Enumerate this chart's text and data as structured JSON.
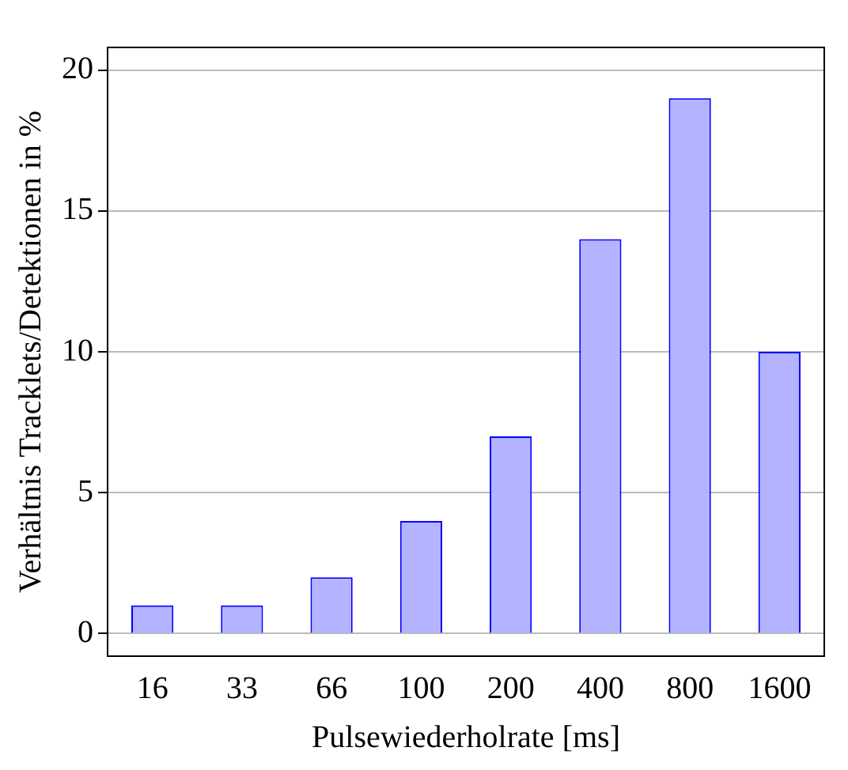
{
  "chart_data": {
    "type": "bar",
    "xlabel": "Pulsewiederholrate [ms]",
    "ylabel": "Verhältnis Tracklets/Detektionen in %",
    "categories": [
      "16",
      "33",
      "66",
      "100",
      "200",
      "400",
      "800",
      "1600"
    ],
    "values": [
      1,
      1,
      2,
      4,
      7,
      14,
      19,
      10
    ],
    "color": "#b3b3ff",
    "ylim": [
      -0.8,
      20.8
    ],
    "yticks": [
      0,
      5,
      10,
      15,
      20
    ],
    "grid": "y",
    "legend": false
  }
}
